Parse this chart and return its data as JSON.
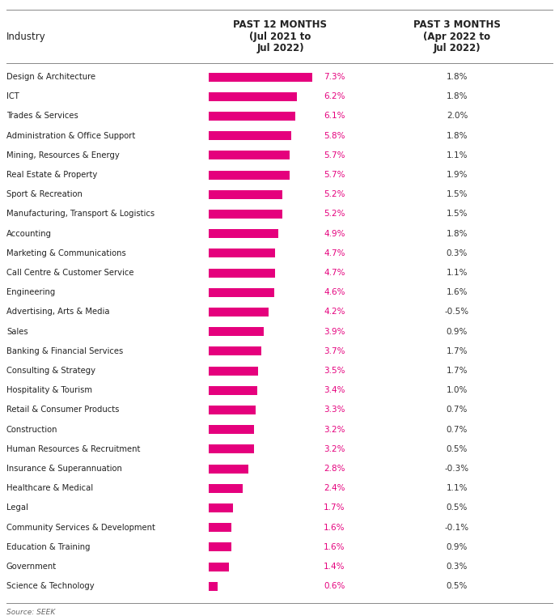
{
  "industries": [
    "Design & Architecture",
    "ICT",
    "Trades & Services",
    "Administration & Office Support",
    "Mining, Resources & Energy",
    "Real Estate & Property",
    "Sport & Recreation",
    "Manufacturing, Transport & Logistics",
    "Accounting",
    "Marketing & Communications",
    "Call Centre & Customer Service",
    "Engineering",
    "Advertising, Arts & Media",
    "Sales",
    "Banking & Financial Services",
    "Consulting & Strategy",
    "Hospitality & Tourism",
    "Retail & Consumer Products",
    "Construction",
    "Human Resources & Recruitment",
    "Insurance & Superannuation",
    "Healthcare & Medical",
    "Legal",
    "Community Services & Development",
    "Education & Training",
    "Government",
    "Science & Technology"
  ],
  "past_12_months": [
    7.3,
    6.2,
    6.1,
    5.8,
    5.7,
    5.7,
    5.2,
    5.2,
    4.9,
    4.7,
    4.7,
    4.6,
    4.2,
    3.9,
    3.7,
    3.5,
    3.4,
    3.3,
    3.2,
    3.2,
    2.8,
    2.4,
    1.7,
    1.6,
    1.6,
    1.4,
    0.6
  ],
  "past_3_months": [
    1.8,
    1.8,
    2.0,
    1.8,
    1.1,
    1.9,
    1.5,
    1.5,
    1.8,
    0.3,
    1.1,
    1.6,
    -0.5,
    0.9,
    1.7,
    1.7,
    1.0,
    0.7,
    0.7,
    0.5,
    -0.3,
    1.1,
    0.5,
    -0.1,
    0.9,
    0.3,
    0.5
  ],
  "bar_color": "#e5007d",
  "text_color_12m": "#e5007d",
  "text_color_3m": "#333333",
  "label_color": "#222222",
  "header_color": "#222222",
  "source_text": "Source: SEEK",
  "col1_header": "Industry",
  "col2_header": "PAST 12 MONTHS\n(Jul 2021 to\nJul 2022)",
  "col3_header": "PAST 3 MONTHS\n(Apr 2022 to\nJul 2022)",
  "max_bar_value": 7.3,
  "fig_width": 6.91,
  "fig_height": 7.61,
  "dpi": 100
}
